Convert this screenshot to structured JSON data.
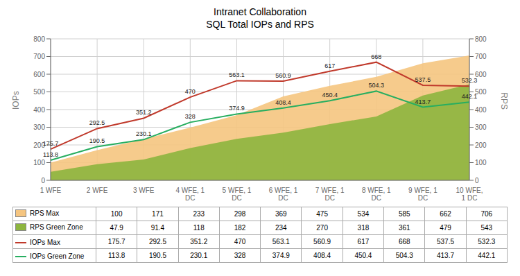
{
  "chart_data": {
    "type": "combo",
    "title": "Intranet Collaboration",
    "subtitle": "SQL Total IOPs and RPS",
    "categories": [
      "1 WFE",
      "2 WFE",
      "3 WFE",
      "4 WFE, 1\nDC",
      "5 WFE, 1\nDC",
      "6 WFE, 1\nDC",
      "7 WFE, 1\nDC",
      "8 WFE, 1\nDC",
      "9 WFE, 1\nDC",
      "10 WFE,\n1 DC"
    ],
    "y_label": "IOPs",
    "y2_label": "RPS",
    "ylim": [
      0,
      800
    ],
    "yticks": [
      0,
      100,
      200,
      300,
      400,
      500,
      600,
      700,
      800
    ],
    "y2lim": [
      0,
      800
    ],
    "y2ticks": [
      0,
      100,
      200,
      300,
      400,
      500,
      600,
      700,
      800
    ],
    "grid": true,
    "series": [
      {
        "name": "RPS Max",
        "type": "area",
        "axis": "y2",
        "color": "#F5C580",
        "values": [
          100,
          171,
          233,
          298,
          369,
          475,
          534,
          585,
          662,
          706
        ]
      },
      {
        "name": "RPS Green Zone",
        "type": "area",
        "axis": "y2",
        "color": "#8DB53E",
        "values": [
          47.9,
          91.4,
          118,
          182,
          234,
          270,
          318,
          361,
          479,
          543
        ]
      },
      {
        "name": "IOPs Max",
        "type": "line",
        "color": "#C0392B",
        "data_labels": true,
        "values": [
          175.7,
          292.5,
          351.2,
          470,
          563.1,
          560.9,
          617,
          668,
          537.5,
          532.3
        ]
      },
      {
        "name": "IOPs Green Zone",
        "type": "line",
        "color": "#27AE60",
        "data_labels": true,
        "values": [
          113.8,
          190.5,
          230.1,
          328,
          374.9,
          408.4,
          450.4,
          504.3,
          413.7,
          442.1
        ]
      }
    ]
  }
}
